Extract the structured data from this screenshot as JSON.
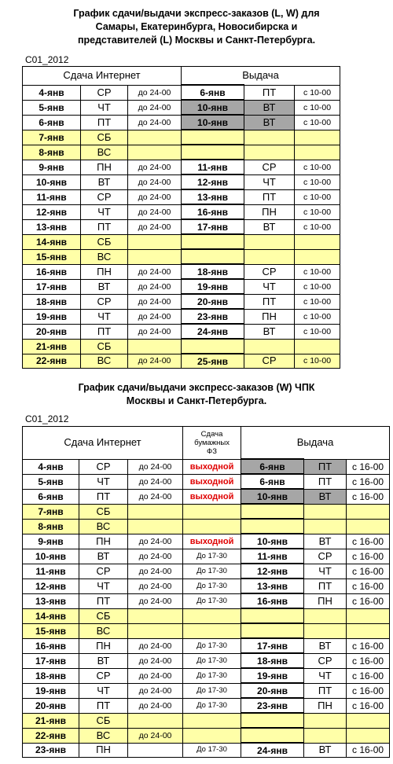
{
  "section1": {
    "title_line1": "График сдачи/выдачи экспресс-заказов (L, W) для",
    "title_line2": "Самары, Екатеринбурга, Новосибирска и",
    "title_line3": "представителей (L) Москвы и Санкт-Петербурга.",
    "code": "С01_2012",
    "header_submit": "Сдача Интернет",
    "header_issue": "Выдача",
    "rows": [
      {
        "date": "4-янв",
        "day": "СР",
        "time": "до 24-00",
        "idate": "6-янв",
        "iday": "ПТ",
        "itime": "с 10-00"
      },
      {
        "date": "5-янв",
        "day": "ЧТ",
        "time": "до 24-00",
        "idate": "10-янв",
        "iday": "ВТ",
        "itime": "с 10-00"
      },
      {
        "date": "6-янв",
        "day": "ПТ",
        "time": "до 24-00",
        "idate": "10-янв",
        "iday": "ВТ",
        "itime": "с 10-00"
      },
      {
        "date": "7-янв",
        "day": "СБ"
      },
      {
        "date": "8-янв",
        "day": "ВС"
      },
      {
        "date": "9-янв",
        "day": "ПН",
        "time": "до 24-00",
        "idate": "11-янв",
        "iday": "СР",
        "itime": "с 10-00"
      },
      {
        "date": "10-янв",
        "day": "ВТ",
        "time": "до 24-00",
        "idate": "12-янв",
        "iday": "ЧТ",
        "itime": "с 10-00"
      },
      {
        "date": "11-янв",
        "day": "СР",
        "time": "до 24-00",
        "idate": "13-янв",
        "iday": "ПТ",
        "itime": "с 10-00"
      },
      {
        "date": "12-янв",
        "day": "ЧТ",
        "time": "до 24-00",
        "idate": "16-янв",
        "iday": "ПН",
        "itime": "с 10-00"
      },
      {
        "date": "13-янв",
        "day": "ПТ",
        "time": "до 24-00",
        "idate": "17-янв",
        "iday": "ВТ",
        "itime": "с 10-00"
      },
      {
        "date": "14-янв",
        "day": "СБ"
      },
      {
        "date": "15-янв",
        "day": "ВС"
      },
      {
        "date": "16-янв",
        "day": "ПН",
        "time": "до 24-00",
        "idate": "18-янв",
        "iday": "СР",
        "itime": "с 10-00"
      },
      {
        "date": "17-янв",
        "day": "ВТ",
        "time": "до 24-00",
        "idate": "19-янв",
        "iday": "ЧТ",
        "itime": "с 10-00"
      },
      {
        "date": "18-янв",
        "day": "СР",
        "time": "до 24-00",
        "idate": "20-янв",
        "iday": "ПТ",
        "itime": "с 10-00"
      },
      {
        "date": "19-янв",
        "day": "ЧТ",
        "time": "до 24-00",
        "idate": "23-янв",
        "iday": "ПН",
        "itime": "с 10-00"
      },
      {
        "date": "20-янв",
        "day": "ПТ",
        "time": "до 24-00",
        "idate": "24-янв",
        "iday": "ВТ",
        "itime": "с 10-00"
      },
      {
        "date": "21-янв",
        "day": "СБ"
      },
      {
        "date": "22-янв",
        "day": "ВС",
        "time": "до 24-00",
        "idate": "25-янв",
        "iday": "СР",
        "itime": "с 10-00"
      }
    ]
  },
  "section2": {
    "title_line1": "График сдачи/выдачи экспресс-заказов (W) ЧПК",
    "title_line2": "Москвы и Санкт-Петербурга.",
    "code": "С01_2012",
    "header_submit": "Сдача Интернет",
    "header_paper_line1": "Сдача",
    "header_paper_line2": "бумажных",
    "header_paper_line3": "ФЗ",
    "header_issue": "Выдача",
    "rows": [
      {
        "date": "4-янв",
        "day": "СР",
        "time": "до 24-00",
        "paper": "выходной",
        "idate": "6-янв",
        "iday": "ПТ",
        "itime": "с 16-00"
      },
      {
        "date": "5-янв",
        "day": "ЧТ",
        "time": "до 24-00",
        "paper": "выходной",
        "idate": "6-янв",
        "iday": "ПТ",
        "itime": "с 16-00"
      },
      {
        "date": "6-янв",
        "day": "ПТ",
        "time": "до 24-00",
        "paper": "выходной",
        "idate": "10-янв",
        "iday": "ВТ",
        "itime": "с 16-00"
      },
      {
        "date": "7-янв",
        "day": "СБ"
      },
      {
        "date": "8-янв",
        "day": "ВС"
      },
      {
        "date": "9-янв",
        "day": "ПН",
        "time": "до 24-00",
        "paper": "выходной",
        "idate": "10-янв",
        "iday": "ВТ",
        "itime": "с 16-00"
      },
      {
        "date": "10-янв",
        "day": "ВТ",
        "time": "до 24-00",
        "paper": "До 17-30",
        "idate": "11-янв",
        "iday": "СР",
        "itime": "с 16-00"
      },
      {
        "date": "11-янв",
        "day": "СР",
        "time": "до 24-00",
        "paper": "До 17-30",
        "idate": "12-янв",
        "iday": "ЧТ",
        "itime": "с 16-00"
      },
      {
        "date": "12-янв",
        "day": "ЧТ",
        "time": "до 24-00",
        "paper": "До 17-30",
        "idate": "13-янв",
        "iday": "ПТ",
        "itime": "с 16-00"
      },
      {
        "date": "13-янв",
        "day": "ПТ",
        "time": "до 24-00",
        "paper": "До 17-30",
        "idate": "16-янв",
        "iday": "ПН",
        "itime": "с 16-00"
      },
      {
        "date": "14-янв",
        "day": "СБ"
      },
      {
        "date": "15-янв",
        "day": "ВС"
      },
      {
        "date": "16-янв",
        "day": "ПН",
        "time": "до 24-00",
        "paper": "До 17-30",
        "idate": "17-янв",
        "iday": "ВТ",
        "itime": "с 16-00"
      },
      {
        "date": "17-янв",
        "day": "ВТ",
        "time": "до 24-00",
        "paper": "До 17-30",
        "idate": "18-янв",
        "iday": "СР",
        "itime": "с 16-00"
      },
      {
        "date": "18-янв",
        "day": "СР",
        "time": "до 24-00",
        "paper": "До 17-30",
        "idate": "19-янв",
        "iday": "ЧТ",
        "itime": "с 16-00"
      },
      {
        "date": "19-янв",
        "day": "ЧТ",
        "time": "до 24-00",
        "paper": "До 17-30",
        "idate": "20-янв",
        "iday": "ПТ",
        "itime": "с 16-00"
      },
      {
        "date": "20-янв",
        "day": "ПТ",
        "time": "до 24-00",
        "paper": "До 17-30",
        "idate": "23-янв",
        "iday": "ПН",
        "itime": "с 16-00"
      },
      {
        "date": "21-янв",
        "day": "СБ"
      },
      {
        "date": "22-янв",
        "day": "ВС",
        "time": "до 24-00"
      },
      {
        "date": "23-янв",
        "day": "ПН",
        "paper": "До 17-30",
        "idate": "24-янв",
        "iday": "ВТ",
        "itime": "с 16-00"
      }
    ]
  },
  "colors": {
    "weekend_fill": "#ffffa8",
    "highlight_fill": "#a6a6a6",
    "day_off_text": "#e00000"
  }
}
